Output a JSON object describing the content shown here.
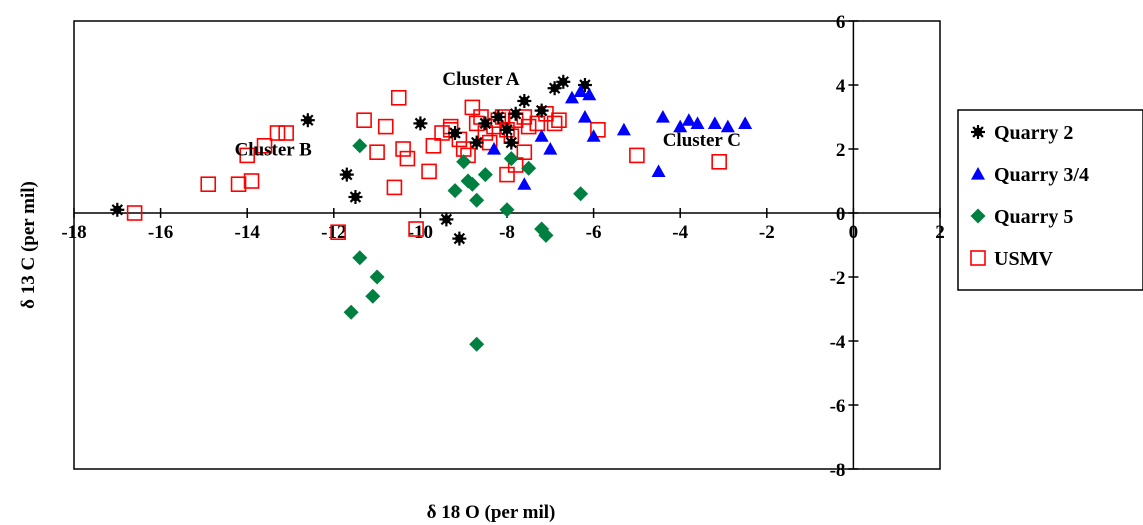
{
  "chart_data": {
    "type": "scatter",
    "xlabel": "δ 18 O (per mil)",
    "ylabel": "δ 13 C (per mil)",
    "xlim": [
      -18,
      2
    ],
    "ylim": [
      -8,
      6
    ],
    "x_ticks": [
      -18,
      -16,
      -14,
      -12,
      -10,
      -8,
      -6,
      -4,
      -2,
      0,
      2
    ],
    "y_ticks": [
      6,
      4,
      2,
      0,
      -2,
      -4,
      -6,
      -8
    ],
    "grid": false,
    "legend_position": "right",
    "annotations": [
      {
        "text": "Cluster A",
        "x": -8.6,
        "y": 4.0
      },
      {
        "text": "Cluster B",
        "x": -13.4,
        "y": 1.8
      },
      {
        "text": "Cluster C",
        "x": -3.5,
        "y": 2.1
      }
    ],
    "series": [
      {
        "name": "Quarry 2",
        "marker": "asterisk",
        "color": "#000000",
        "points": [
          [
            -17.0,
            0.1
          ],
          [
            -12.6,
            2.9
          ],
          [
            -11.7,
            1.2
          ],
          [
            -11.5,
            0.5
          ],
          [
            -10.0,
            2.8
          ],
          [
            -9.4,
            -0.2
          ],
          [
            -9.1,
            -0.8
          ],
          [
            -9.2,
            2.5
          ],
          [
            -8.7,
            2.2
          ],
          [
            -8.5,
            2.8
          ],
          [
            -8.2,
            3.0
          ],
          [
            -7.8,
            3.1
          ],
          [
            -7.6,
            3.5
          ],
          [
            -7.2,
            3.2
          ],
          [
            -6.9,
            3.9
          ],
          [
            -6.7,
            4.1
          ],
          [
            -6.2,
            4.0
          ],
          [
            -8.0,
            2.6
          ],
          [
            -7.9,
            2.2
          ]
        ]
      },
      {
        "name": "Quarry 3/4",
        "marker": "triangle",
        "color": "#0000ff",
        "points": [
          [
            -6.5,
            3.6
          ],
          [
            -6.3,
            3.8
          ],
          [
            -6.1,
            3.7
          ],
          [
            -6.2,
            3.0
          ],
          [
            -6.0,
            2.4
          ],
          [
            -5.3,
            2.6
          ],
          [
            -4.4,
            3.0
          ],
          [
            -4.5,
            1.3
          ],
          [
            -4.0,
            2.7
          ],
          [
            -3.8,
            2.9
          ],
          [
            -3.6,
            2.8
          ],
          [
            -3.2,
            2.8
          ],
          [
            -2.9,
            2.7
          ],
          [
            -2.5,
            2.8
          ],
          [
            -7.0,
            2.0
          ],
          [
            -7.6,
            0.9
          ],
          [
            -8.3,
            2.0
          ],
          [
            -7.2,
            2.4
          ]
        ]
      },
      {
        "name": "Quarry 5",
        "marker": "diamond",
        "color": "#008040",
        "points": [
          [
            -11.4,
            2.1
          ],
          [
            -11.4,
            -1.4
          ],
          [
            -11.0,
            -2.0
          ],
          [
            -11.1,
            -2.6
          ],
          [
            -11.6,
            -3.1
          ],
          [
            -9.2,
            0.7
          ],
          [
            -8.9,
            1.0
          ],
          [
            -8.7,
            0.4
          ],
          [
            -8.5,
            1.2
          ],
          [
            -8.0,
            0.1
          ],
          [
            -7.5,
            1.4
          ],
          [
            -7.2,
            -0.5
          ],
          [
            -7.1,
            -0.7
          ],
          [
            -6.3,
            0.6
          ],
          [
            -8.7,
            -4.1
          ],
          [
            -7.9,
            1.7
          ],
          [
            -9.0,
            1.6
          ],
          [
            -8.8,
            0.9
          ]
        ]
      },
      {
        "name": "USMV",
        "marker": "square-open",
        "color": "#ff0000",
        "points": [
          [
            -16.6,
            0.0
          ],
          [
            -14.9,
            0.9
          ],
          [
            -14.2,
            0.9
          ],
          [
            -13.9,
            1.0
          ],
          [
            -14.0,
            1.8
          ],
          [
            -13.6,
            2.1
          ],
          [
            -13.3,
            2.5
          ],
          [
            -13.1,
            2.5
          ],
          [
            -11.9,
            -0.6
          ],
          [
            -11.3,
            2.9
          ],
          [
            -11.0,
            1.9
          ],
          [
            -10.8,
            2.7
          ],
          [
            -10.6,
            0.8
          ],
          [
            -10.5,
            3.6
          ],
          [
            -10.4,
            2.0
          ],
          [
            -10.3,
            1.7
          ],
          [
            -10.1,
            -0.5
          ],
          [
            -9.8,
            1.3
          ],
          [
            -9.7,
            2.1
          ],
          [
            -9.5,
            2.5
          ],
          [
            -9.3,
            2.7
          ],
          [
            -9.1,
            2.3
          ],
          [
            -9.0,
            2.0
          ],
          [
            -8.8,
            3.3
          ],
          [
            -8.7,
            2.8
          ],
          [
            -8.6,
            3.0
          ],
          [
            -8.5,
            2.5
          ],
          [
            -8.3,
            2.7
          ],
          [
            -8.2,
            2.9
          ],
          [
            -8.1,
            3.0
          ],
          [
            -8.0,
            2.6
          ],
          [
            -7.9,
            2.4
          ],
          [
            -7.8,
            1.5
          ],
          [
            -7.8,
            2.9
          ],
          [
            -7.6,
            3.0
          ],
          [
            -7.5,
            2.7
          ],
          [
            -7.3,
            2.8
          ],
          [
            -7.1,
            3.1
          ],
          [
            -6.9,
            2.8
          ],
          [
            -6.8,
            2.9
          ],
          [
            -5.9,
            2.6
          ],
          [
            -5.0,
            1.8
          ],
          [
            -3.1,
            1.6
          ],
          [
            -8.9,
            1.8
          ],
          [
            -8.0,
            1.2
          ],
          [
            -9.3,
            2.6
          ],
          [
            -8.4,
            2.2
          ],
          [
            -7.6,
            1.9
          ]
        ]
      }
    ]
  }
}
